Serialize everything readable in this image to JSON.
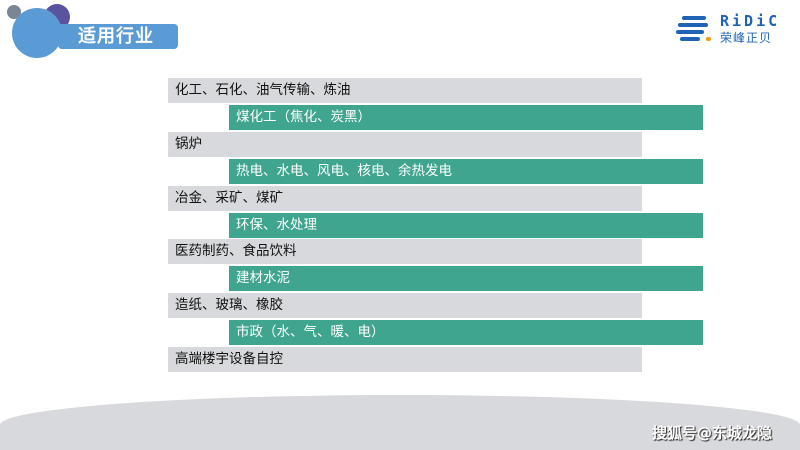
{
  "header": {
    "title": "适用行业"
  },
  "logo": {
    "text_en": "RiDiC",
    "text_cn": "荣峰正贝"
  },
  "colors": {
    "accent_blue": "#5b9bd5",
    "teal": "#3fa58f",
    "gray": "#d8d9dc",
    "logo_blue": "#1f63b5"
  },
  "industries": [
    {
      "label": "化工、石化、油气传输、炼油",
      "style": "gray"
    },
    {
      "label": "煤化工（焦化、炭黑）",
      "style": "teal"
    },
    {
      "label": "锅炉",
      "style": "gray"
    },
    {
      "label": "热电、水电、风电、核电、余热发电",
      "style": "teal"
    },
    {
      "label": "冶金、采矿、煤矿",
      "style": "gray"
    },
    {
      "label": "环保、水处理",
      "style": "teal"
    },
    {
      "label": "医药制药、食品饮料",
      "style": "gray"
    },
    {
      "label": "建材水泥",
      "style": "teal"
    },
    {
      "label": "造纸、玻璃、橡胶",
      "style": "gray"
    },
    {
      "label": "市政（水、气、暖、电）",
      "style": "teal"
    },
    {
      "label": "高端楼宇设备自控",
      "style": "gray"
    }
  ],
  "watermark": "搜狐号@东城龙隐"
}
